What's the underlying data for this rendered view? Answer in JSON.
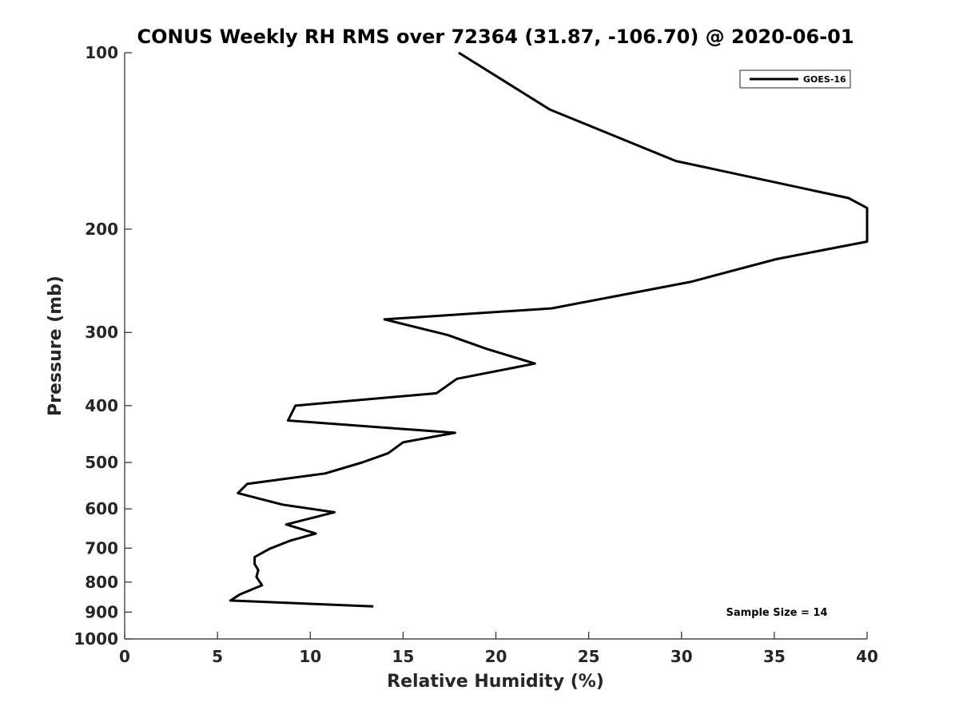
{
  "chart_data": {
    "type": "line",
    "title": "CONUS Weekly RH RMS over 72364 (31.87, -106.70) @ 2020-06-01",
    "xlabel": "Relative Humidity (%)",
    "ylabel": "Pressure (mb)",
    "xlim": [
      0,
      40
    ],
    "ylim": [
      1000,
      100
    ],
    "yscale": "log",
    "y_reversed": true,
    "grid": false,
    "legend_position": "top-right",
    "xticks": [
      0,
      5,
      10,
      15,
      20,
      25,
      30,
      35,
      40
    ],
    "xtick_labels": [
      "0",
      "5",
      "10",
      "15",
      "20",
      "25",
      "30",
      "35",
      "40"
    ],
    "yticks": [
      100,
      200,
      300,
      400,
      500,
      600,
      700,
      800,
      900,
      1000
    ],
    "ytick_labels": [
      "100",
      "200",
      "300",
      "400",
      "500",
      "600",
      "700",
      "800",
      "900",
      "1000"
    ],
    "series": [
      {
        "name": "GOES-16",
        "color": "#000000",
        "points": [
          [
            18.0,
            100
          ],
          [
            22.9,
            125
          ],
          [
            29.7,
            153
          ],
          [
            39.0,
            177
          ],
          [
            40.0,
            184
          ],
          [
            40.0,
            210
          ],
          [
            35.1,
            225
          ],
          [
            30.5,
            246
          ],
          [
            23.0,
            273
          ],
          [
            14.0,
            285
          ],
          [
            17.4,
            303
          ],
          [
            19.5,
            320
          ],
          [
            22.1,
            339
          ],
          [
            17.9,
            360
          ],
          [
            16.8,
            381
          ],
          [
            9.2,
            400
          ],
          [
            8.8,
            424
          ],
          [
            17.8,
            445
          ],
          [
            15.0,
            462
          ],
          [
            14.2,
            482
          ],
          [
            12.8,
            500
          ],
          [
            10.8,
            522
          ],
          [
            6.6,
            544
          ],
          [
            6.1,
            564
          ],
          [
            8.5,
            590
          ],
          [
            11.3,
            608
          ],
          [
            8.7,
            638
          ],
          [
            10.3,
            661
          ],
          [
            8.9,
            680
          ],
          [
            7.8,
            702
          ],
          [
            7.0,
            725
          ],
          [
            7.0,
            745
          ],
          [
            7.2,
            763
          ],
          [
            7.1,
            784
          ],
          [
            7.4,
            810
          ],
          [
            6.2,
            840
          ],
          [
            5.7,
            860
          ],
          [
            13.4,
            880
          ]
        ]
      }
    ],
    "annotation": "Sample Size = 14"
  }
}
